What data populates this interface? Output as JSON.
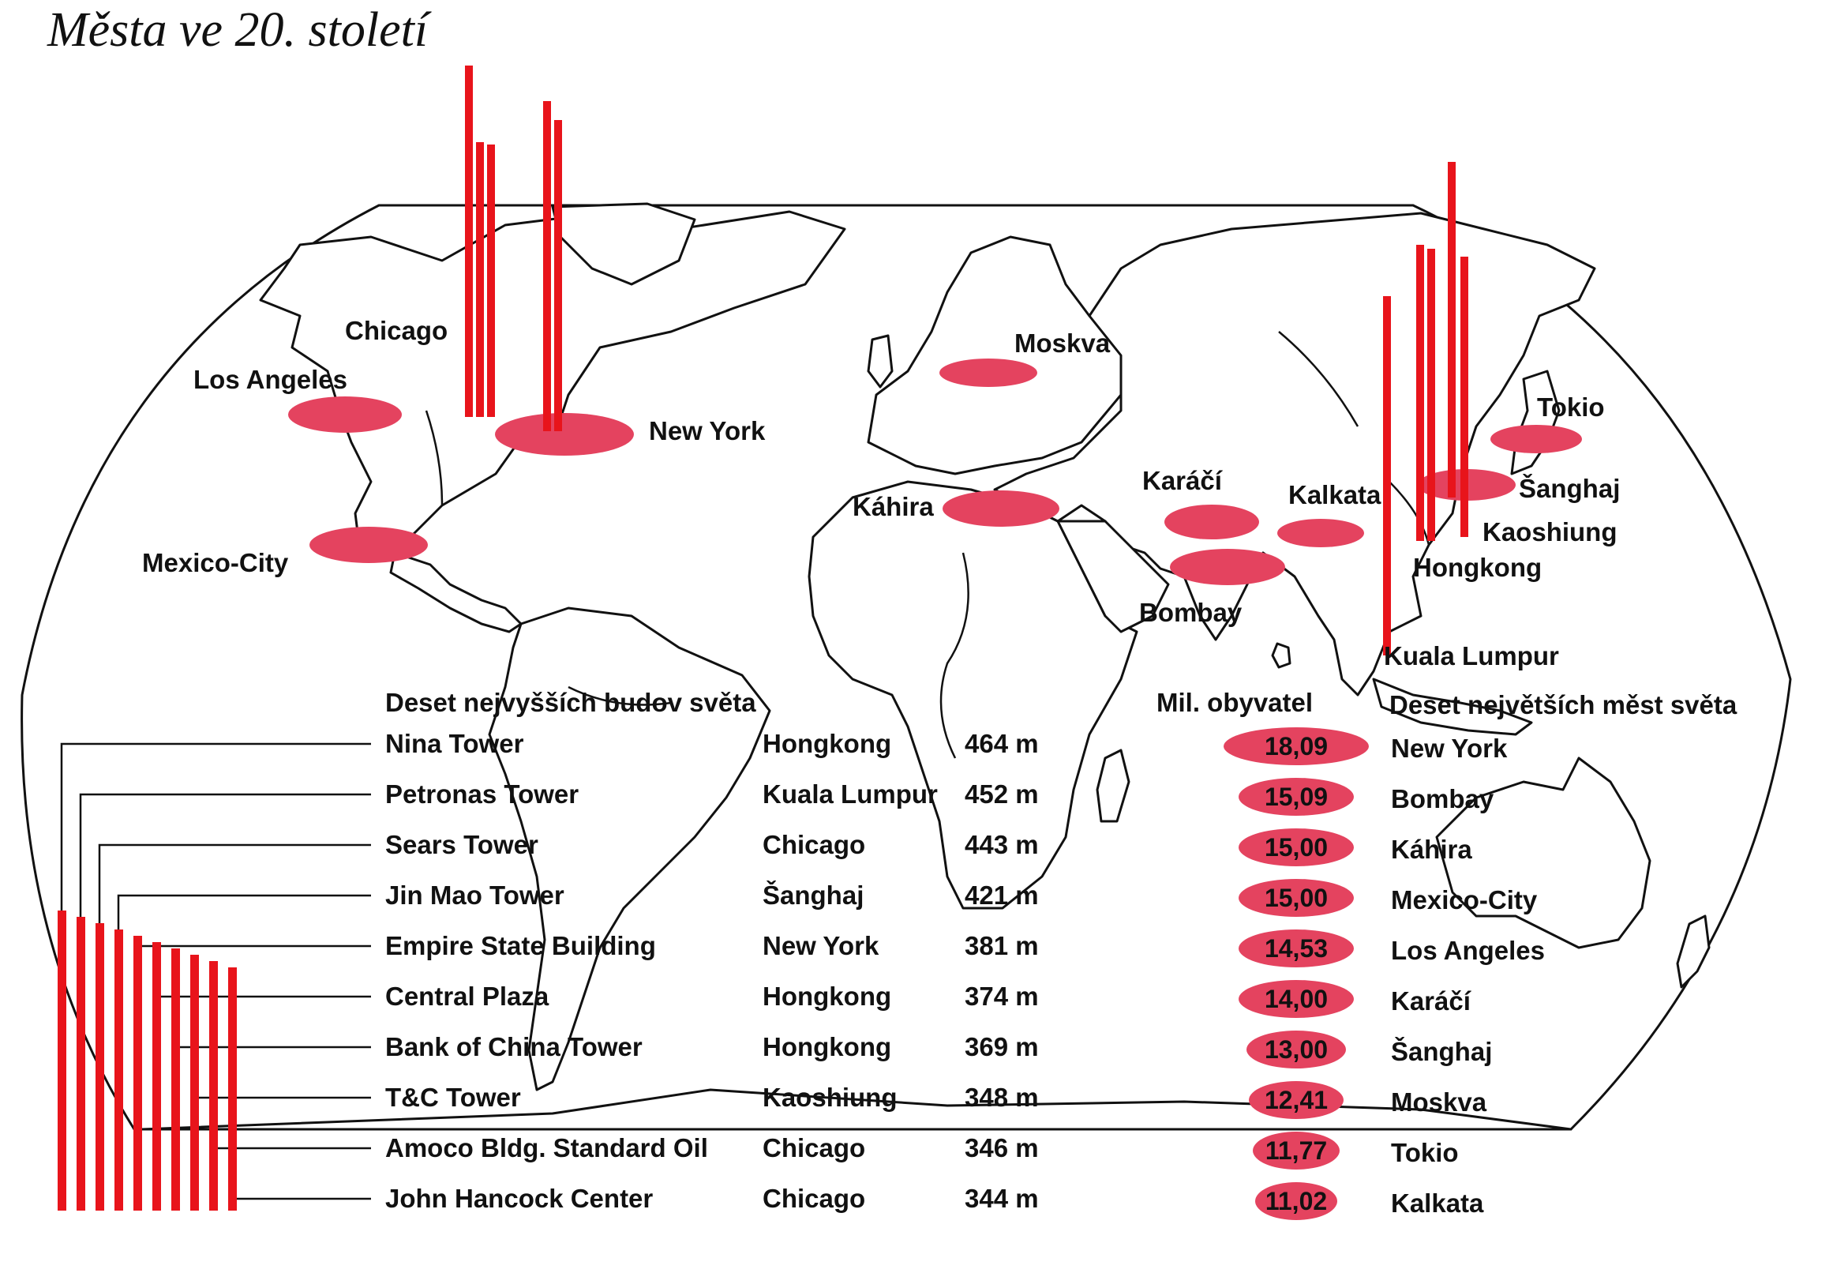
{
  "title": "Města ve 20. století",
  "colors": {
    "bar": "#e8141b",
    "ellipse": "#e4435f",
    "ink": "#111111"
  },
  "buildings_header": "Deset nejvyšších budov světa",
  "population_header": "Mil. obyvatel",
  "cities_header": "Deset největších měst světa",
  "buildings": [
    {
      "name": "Nina Tower",
      "city": "Hongkong",
      "height": "464 m"
    },
    {
      "name": "Petronas Tower",
      "city": "Kuala Lumpur",
      "height": "452 m"
    },
    {
      "name": "Sears Tower",
      "city": "Chicago",
      "height": "443 m"
    },
    {
      "name": "Jin Mao Tower",
      "city": "Šanghaj",
      "height": "421 m"
    },
    {
      "name": "Empire State Building",
      "city": "New York",
      "height": "381 m"
    },
    {
      "name": "Central Plaza",
      "city": "Hongkong",
      "height": "374 m"
    },
    {
      "name": "Bank of China Tower",
      "city": "Hongkong",
      "height": "369 m"
    },
    {
      "name": "T&C Tower",
      "city": "Kaoshiung",
      "height": "348 m"
    },
    {
      "name": "Amoco Bldg. Standard Oil",
      "city": "Chicago",
      "height": "346 m"
    },
    {
      "name": "John Hancock Center",
      "city": "Chicago",
      "height": "344 m"
    }
  ],
  "cities": [
    {
      "name": "New York",
      "population": "18,09"
    },
    {
      "name": "Bombay",
      "population": "15,09"
    },
    {
      "name": "Káhira",
      "population": "15,00"
    },
    {
      "name": "Mexico-City",
      "population": "15,00"
    },
    {
      "name": "Los Angeles",
      "population": "14,53"
    },
    {
      "name": "Karáčí",
      "population": "14,00"
    },
    {
      "name": "Šanghaj",
      "population": "13,00"
    },
    {
      "name": "Moskva",
      "population": "12,41"
    },
    {
      "name": "Tokio",
      "population": "11,77"
    },
    {
      "name": "Kalkata",
      "population": "11,02"
    }
  ],
  "map_labels": {
    "chicago": "Chicago",
    "los_angeles": "Los Angeles",
    "new_york": "New York",
    "mexico_city": "Mexico-City",
    "moskva": "Moskva",
    "kahira": "Káhira",
    "karaci": "Karáčí",
    "kalkata": "Kalkata",
    "bombay": "Bombay",
    "tokio": "Tokio",
    "sanghaj": "Šanghaj",
    "kaoshiung": "Kaoshiung",
    "hongkong": "Hongkong",
    "kuala_lumpur": "Kuala Lumpur"
  }
}
